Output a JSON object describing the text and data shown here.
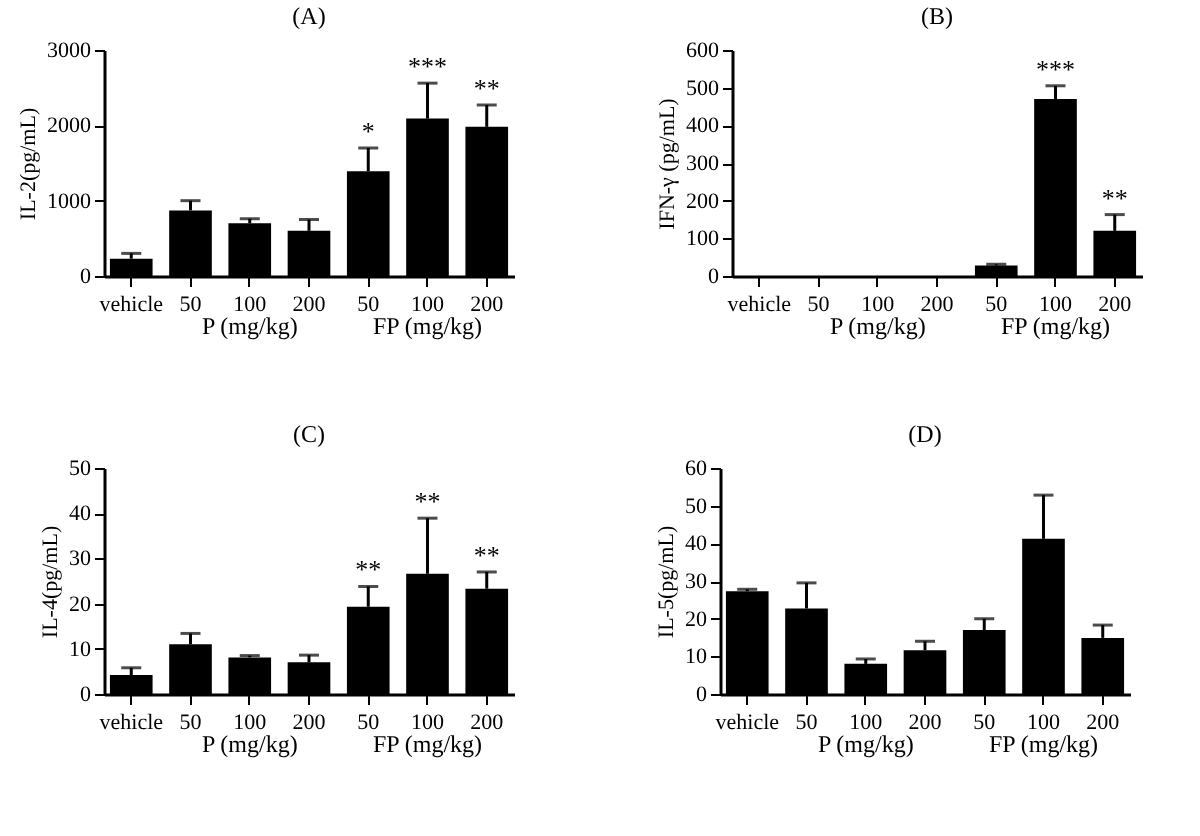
{
  "chart_data": [
    {
      "type": "bar",
      "title": "(A)",
      "ylabel": "IL-2(pg/mL)",
      "categories": [
        "vehicle",
        "50",
        "100",
        "200",
        "50",
        "100",
        "200"
      ],
      "values": [
        230,
        870,
        700,
        600,
        1390,
        2090,
        1980
      ],
      "errors": [
        [
          230,
          300
        ],
        [
          870,
          1000
        ],
        [
          700,
          760
        ],
        [
          600,
          750
        ],
        [
          1390,
          1700
        ],
        [
          2090,
          2560
        ],
        [
          1980,
          2270
        ]
      ],
      "value_labels": [
        null,
        null,
        null,
        null,
        "*",
        "***",
        "**"
      ],
      "color": "#000000",
      "ylim": [
        0,
        3000
      ],
      "yticks": [
        0,
        1000,
        2000,
        3000
      ],
      "grid": false,
      "annotations": [
        "P (mg/kg)",
        "FP (mg/kg)"
      ]
    },
    {
      "type": "bar",
      "title": "(B)",
      "ylabel": "IFN-γ (pg/mL)",
      "categories": [
        "vehicle",
        "50",
        "100",
        "200",
        "50",
        "100",
        "200"
      ],
      "values": [
        0,
        0,
        0,
        0,
        28,
        470,
        120
      ],
      "errors": [
        null,
        null,
        null,
        null,
        [
          28,
          31
        ],
        [
          470,
          505
        ],
        [
          120,
          163
        ]
      ],
      "value_labels": [
        null,
        null,
        null,
        null,
        null,
        "***",
        "**"
      ],
      "color": "#000000",
      "ylim": [
        0,
        600
      ],
      "yticks": [
        0,
        100,
        200,
        300,
        400,
        500,
        600
      ],
      "grid": false,
      "annotations": [
        "P (mg/kg)",
        "FP (mg/kg)"
      ]
    },
    {
      "type": "bar",
      "title": "(C)",
      "ylabel": "IL-4(pg/mL)",
      "categories": [
        "vehicle",
        "50",
        "100",
        "200",
        "50",
        "100",
        "200"
      ],
      "values": [
        4.2,
        11,
        8.1,
        7,
        19.3,
        26.6,
        23.3
      ],
      "errors": [
        [
          4.2,
          5.8
        ],
        [
          11,
          13.4
        ],
        [
          8.1,
          8.5
        ],
        [
          7,
          8.6
        ],
        [
          19.3,
          23.8
        ],
        [
          26.6,
          38.9
        ],
        [
          23.3,
          27
        ]
      ],
      "value_labels": [
        null,
        null,
        null,
        null,
        "**",
        "**",
        "**"
      ],
      "color": "#000000",
      "ylim": [
        0,
        50
      ],
      "yticks": [
        0,
        10,
        20,
        30,
        40,
        50
      ],
      "grid": false,
      "annotations": [
        "P (mg/kg)",
        "FP (mg/kg)"
      ]
    },
    {
      "type": "bar",
      "title": "(D)",
      "ylabel": "IL-5(pg/mL)",
      "categories": [
        "vehicle",
        "50",
        "100",
        "200",
        "50",
        "100",
        "200"
      ],
      "values": [
        27.3,
        22.7,
        8,
        11.6,
        17,
        41.2,
        14.9
      ],
      "errors": [
        [
          27.3,
          27.8
        ],
        [
          22.7,
          29.5
        ],
        [
          8,
          9.3
        ],
        [
          11.6,
          14
        ],
        [
          17,
          20
        ],
        [
          41.2,
          52.8
        ],
        [
          14.9,
          18.3
        ]
      ],
      "value_labels": [
        null,
        null,
        null,
        null,
        null,
        null,
        null
      ],
      "color": "#000000",
      "ylim": [
        0,
        60
      ],
      "yticks": [
        0,
        10,
        20,
        30,
        40,
        50,
        60
      ],
      "grid": false,
      "annotations": [
        "P (mg/kg)",
        "FP (mg/kg)"
      ]
    }
  ]
}
